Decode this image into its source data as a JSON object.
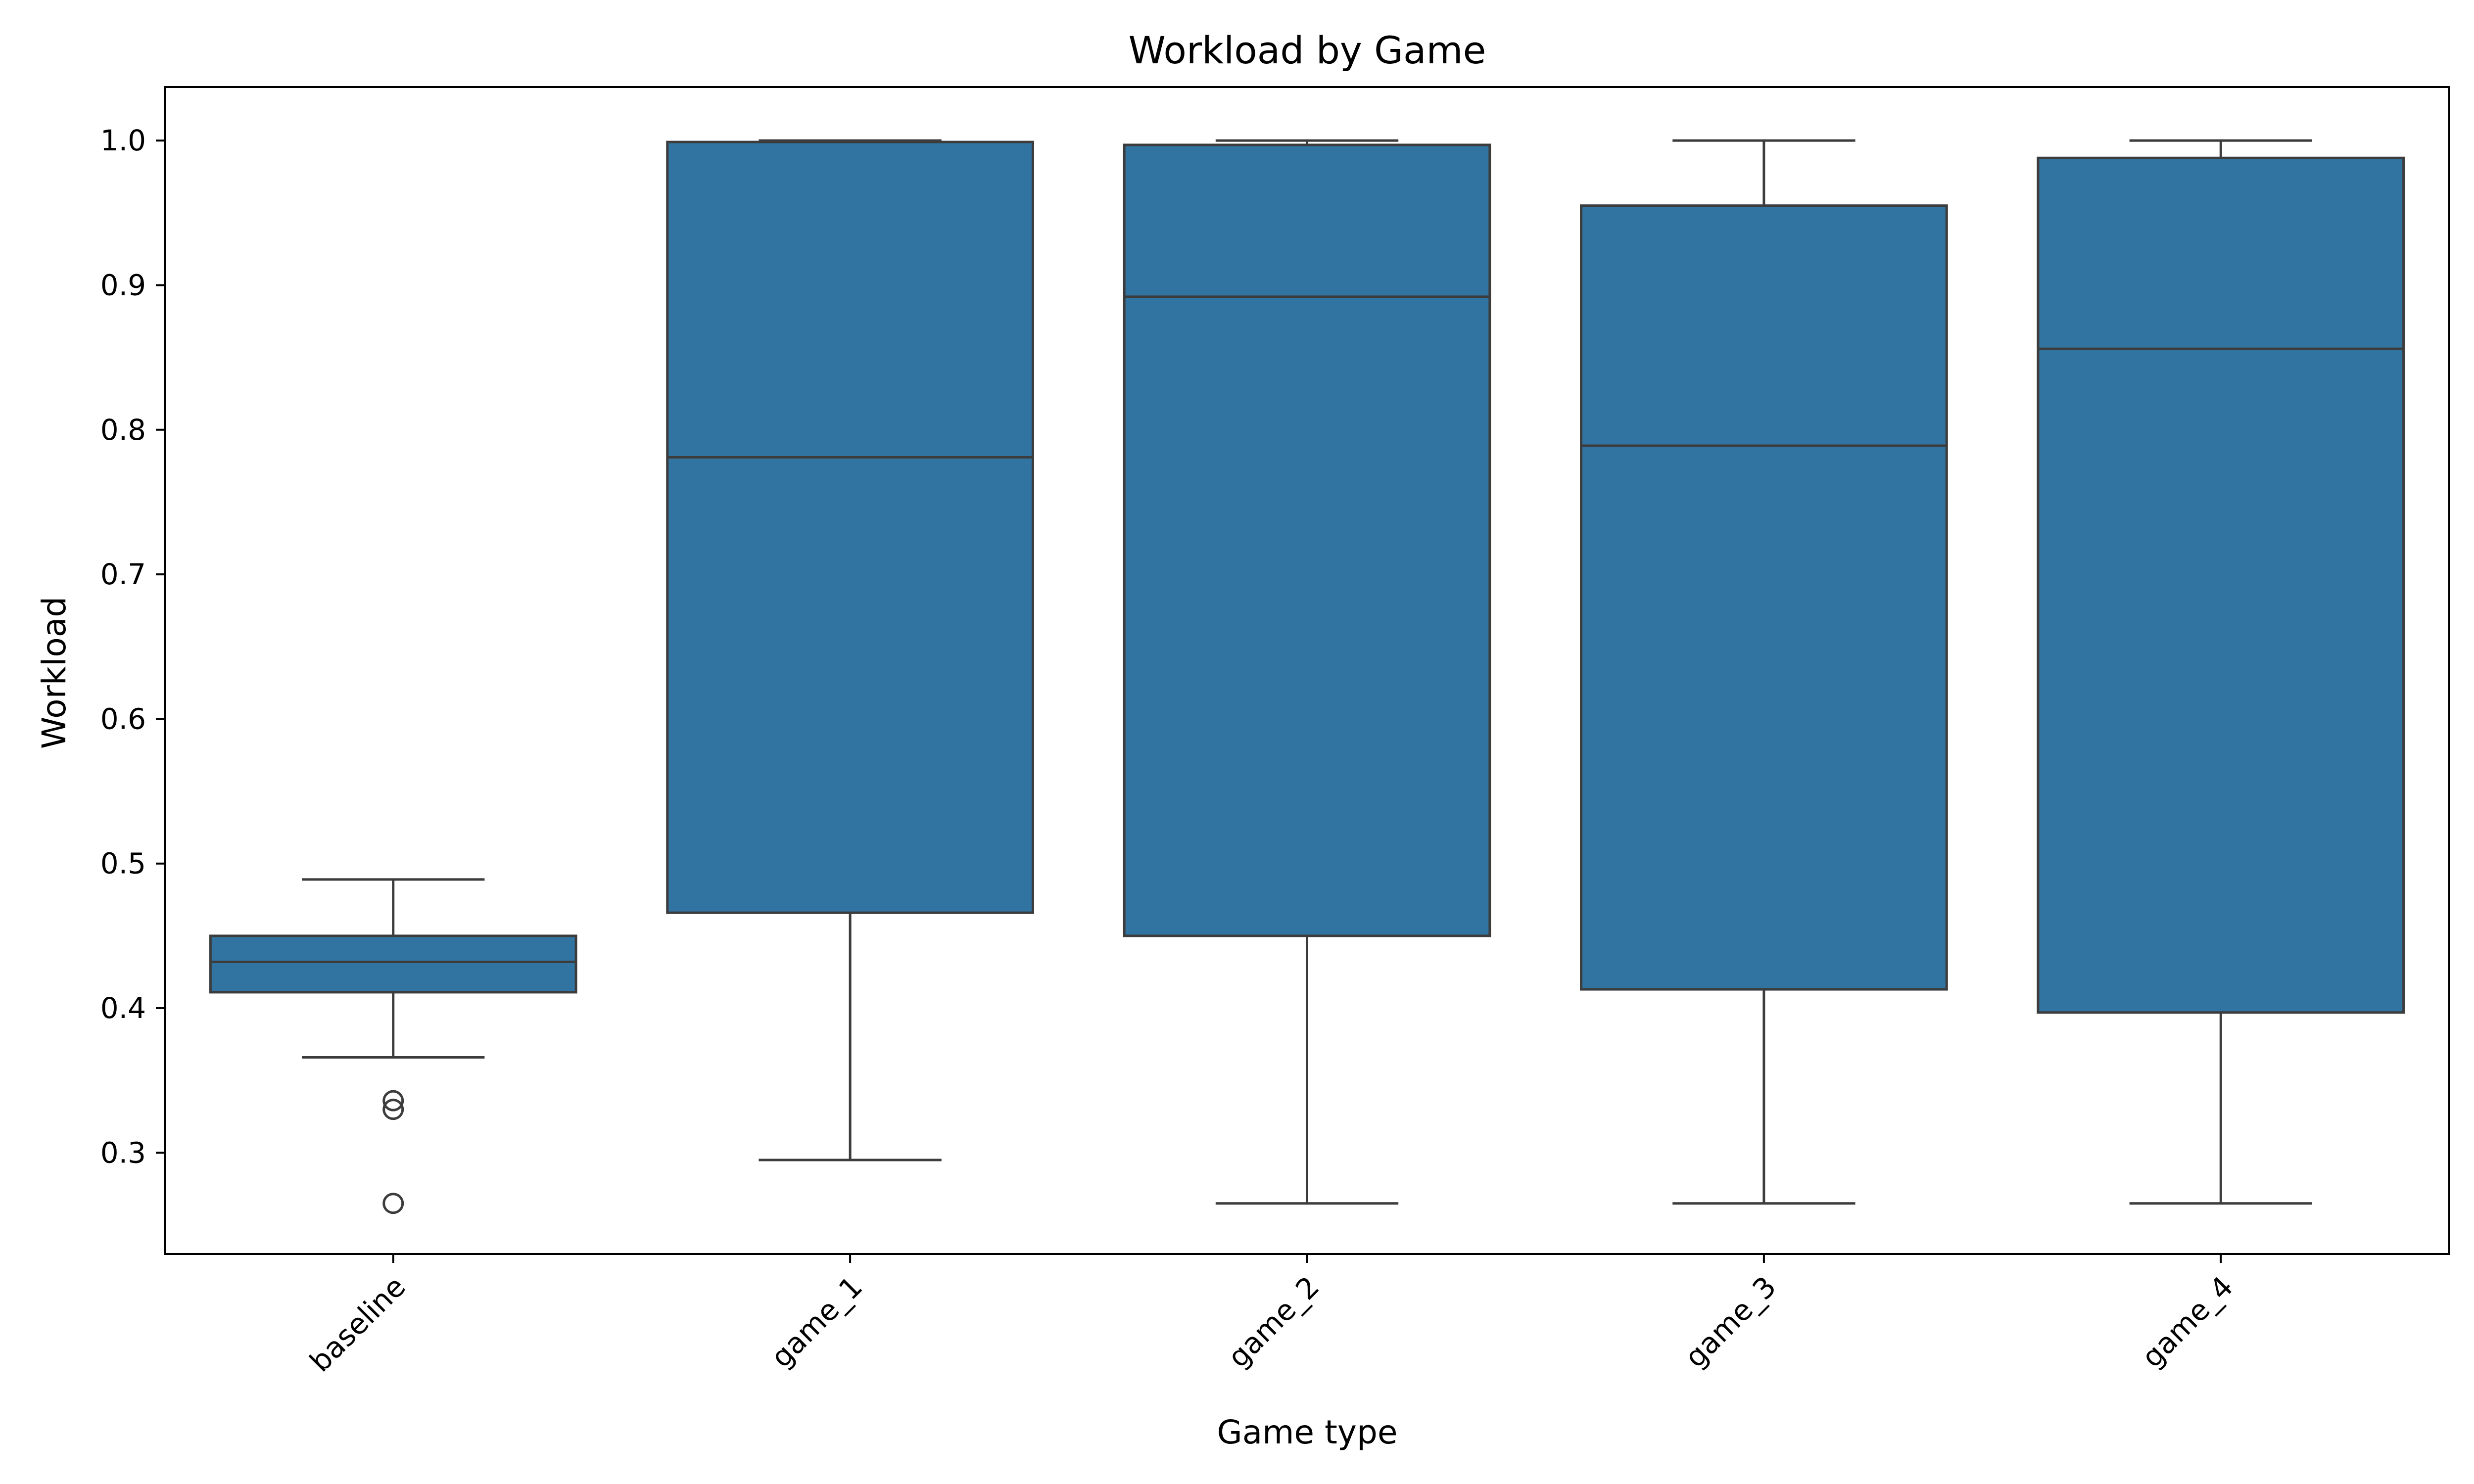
{
  "chart_data": {
    "type": "box",
    "title": "Workload by Game",
    "xlabel": "Game type",
    "ylabel": "Workload",
    "ylim": [
      0.23,
      1.037
    ],
    "yticks": [
      "0.3",
      "0.4",
      "0.5",
      "0.6",
      "0.7",
      "0.8",
      "0.9",
      "1.0"
    ],
    "grid": false,
    "box_color": "#3274a1",
    "edge_color": "#3c3c3c",
    "categories": [
      "baseline",
      "game_1",
      "game_2",
      "game_3",
      "game_4"
    ],
    "boxes": [
      {
        "category": "baseline",
        "whisker_low": 0.366,
        "q1": 0.411,
        "median": 0.432,
        "q3": 0.45,
        "whisker_high": 0.489,
        "outliers": [
          0.336,
          0.33,
          0.265
        ]
      },
      {
        "category": "game_1",
        "whisker_low": 0.295,
        "q1": 0.466,
        "median": 0.781,
        "q3": 0.999,
        "whisker_high": 1.0,
        "outliers": []
      },
      {
        "category": "game_2",
        "whisker_low": 0.265,
        "q1": 0.45,
        "median": 0.892,
        "q3": 0.997,
        "whisker_high": 1.0,
        "outliers": []
      },
      {
        "category": "game_3",
        "whisker_low": 0.265,
        "q1": 0.413,
        "median": 0.789,
        "q3": 0.955,
        "whisker_high": 1.0,
        "outliers": []
      },
      {
        "category": "game_4",
        "whisker_low": 0.265,
        "q1": 0.397,
        "median": 0.856,
        "q3": 0.988,
        "whisker_high": 1.0,
        "outliers": []
      }
    ]
  }
}
